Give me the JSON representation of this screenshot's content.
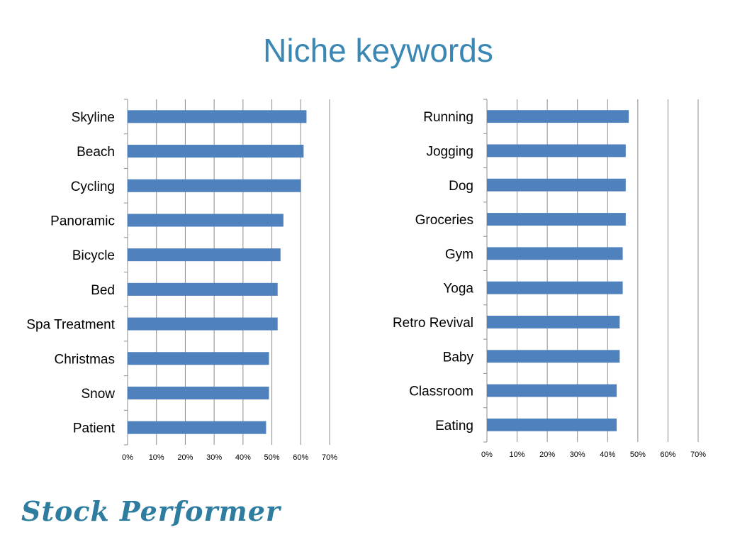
{
  "title": "Niche keywords",
  "logo_text": "Stock Performer",
  "colors": {
    "bar": "#4f81bd",
    "title": "#3a87b4",
    "grid": "#8c8c8c",
    "logo": "#2e7da0"
  },
  "chart_data": [
    {
      "type": "bar",
      "orientation": "horizontal",
      "categories": [
        "Skyline",
        "Beach",
        "Cycling",
        "Panoramic",
        "Bicycle",
        "Bed",
        "Spa Treatment",
        "Christmas",
        "Snow",
        "Patient"
      ],
      "values": [
        0.62,
        0.61,
        0.6,
        0.54,
        0.53,
        0.52,
        0.52,
        0.49,
        0.49,
        0.48
      ],
      "xlim": [
        0,
        0.7
      ],
      "ticks": [
        "0%",
        "10%",
        "20%",
        "30%",
        "40%",
        "50%",
        "60%",
        "70%"
      ],
      "grid": true
    },
    {
      "type": "bar",
      "orientation": "horizontal",
      "categories": [
        "Running",
        "Jogging",
        "Dog",
        "Groceries",
        "Gym",
        "Yoga",
        "Retro Revival",
        "Baby",
        "Classroom",
        "Eating"
      ],
      "values": [
        0.47,
        0.46,
        0.46,
        0.46,
        0.45,
        0.45,
        0.44,
        0.44,
        0.43,
        0.43
      ],
      "xlim": [
        0,
        0.7
      ],
      "ticks": [
        "0%",
        "10%",
        "20%",
        "30%",
        "40%",
        "50%",
        "60%",
        "70%"
      ],
      "grid": true
    }
  ]
}
